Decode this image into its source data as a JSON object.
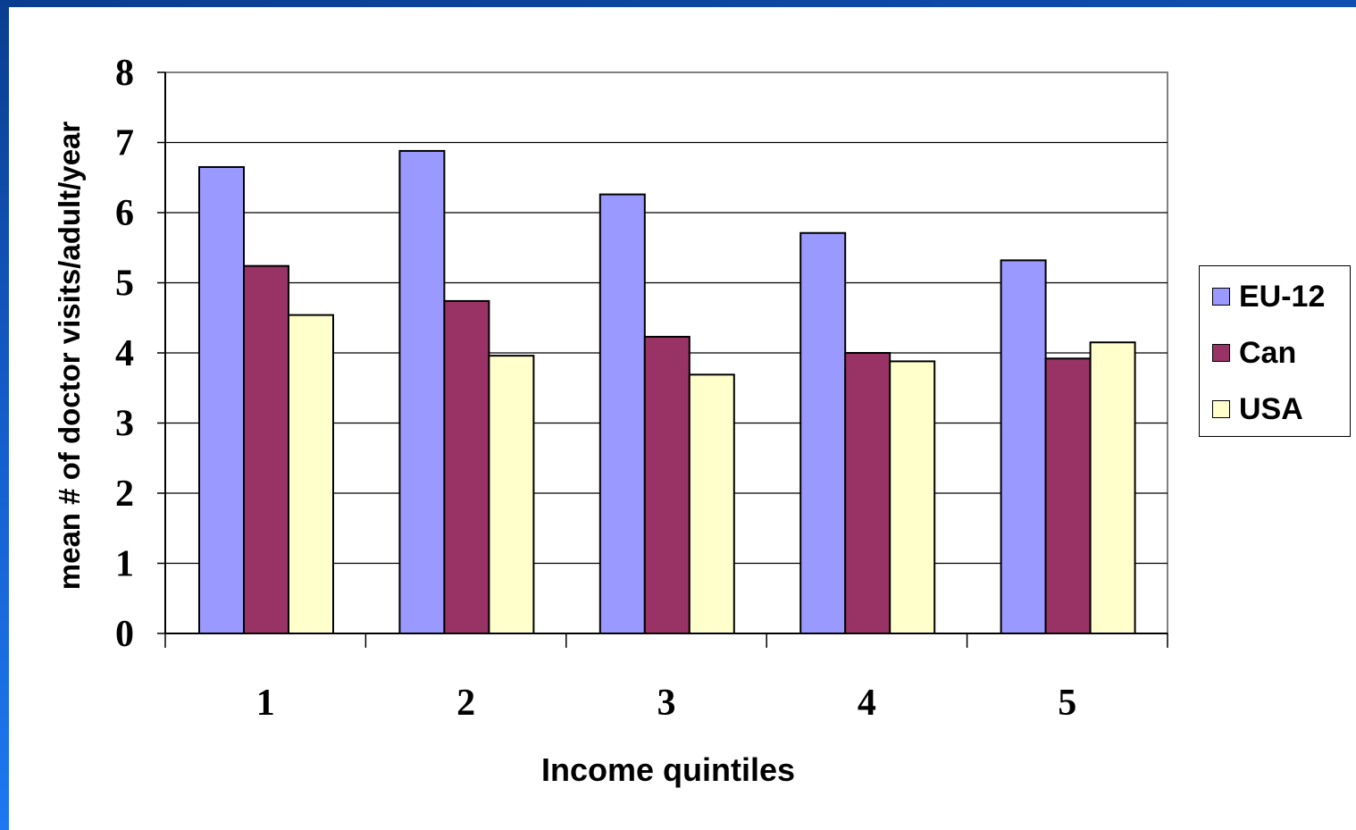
{
  "chart_data": {
    "type": "bar",
    "categories": [
      "1",
      "2",
      "3",
      "4",
      "5"
    ],
    "series": [
      {
        "name": "EU-12",
        "color": "#9999ff",
        "values": [
          6.65,
          6.88,
          6.26,
          5.71,
          5.32
        ]
      },
      {
        "name": "Can",
        "color": "#993366",
        "values": [
          5.24,
          4.74,
          4.23,
          4.0,
          3.92
        ]
      },
      {
        "name": "USA",
        "color": "#ffffcc",
        "values": [
          4.54,
          3.96,
          3.69,
          3.88,
          4.15
        ]
      }
    ],
    "xlabel": "Income quintiles",
    "ylabel": "mean # of doctor visits/adult/year",
    "ylim": [
      0,
      8
    ],
    "yticks": [
      "0",
      "1",
      "2",
      "3",
      "4",
      "5",
      "6",
      "7",
      "8"
    ],
    "grid": true,
    "legend_position": "right"
  }
}
